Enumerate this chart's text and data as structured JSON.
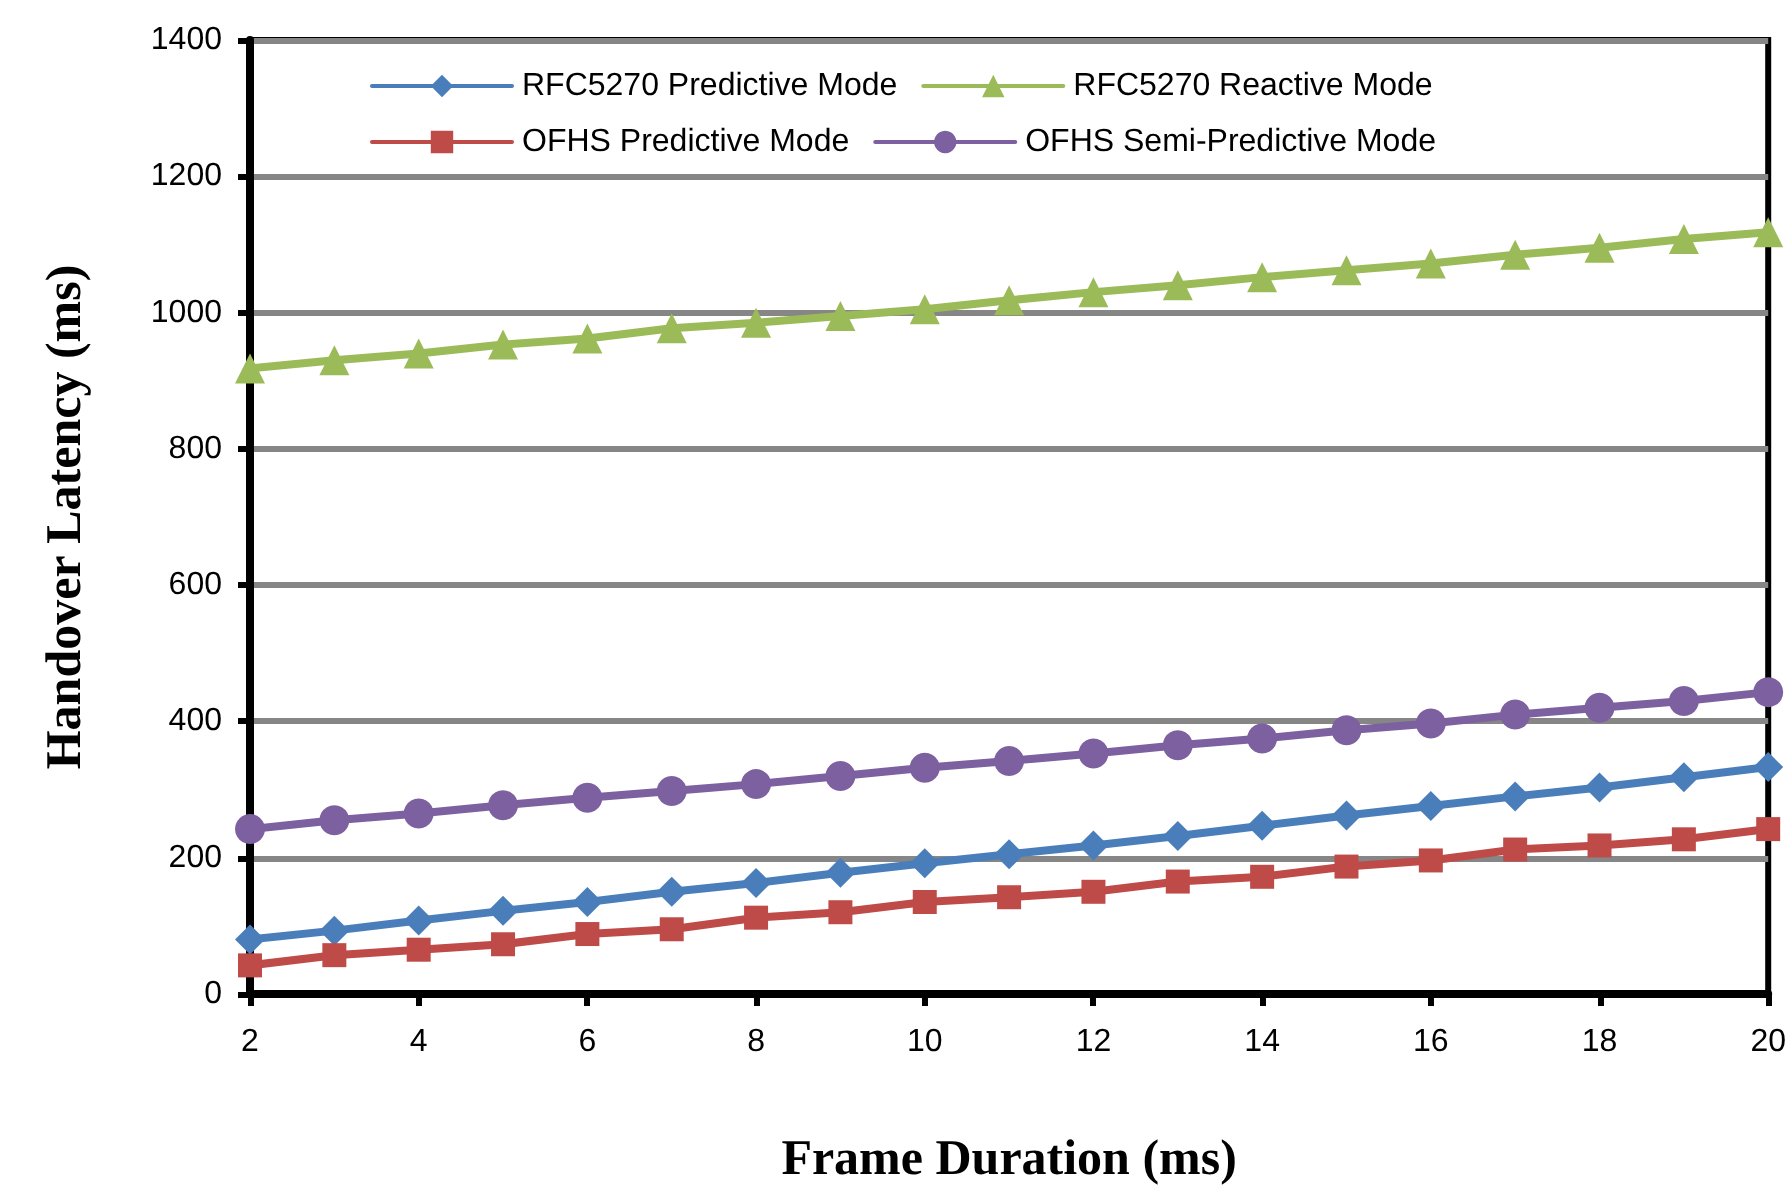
{
  "chart_data": {
    "type": "line",
    "xlabel": "Frame Duration (ms)",
    "ylabel": "Handover Latency (ms)",
    "x": [
      2,
      3,
      4,
      5,
      6,
      7,
      8,
      9,
      10,
      11,
      12,
      13,
      14,
      15,
      16,
      17,
      18,
      19,
      20
    ],
    "xlim": [
      2,
      20
    ],
    "xticks": [
      2,
      4,
      6,
      8,
      10,
      12,
      14,
      16,
      18,
      20
    ],
    "ylim": [
      0,
      1400
    ],
    "yticks": [
      0,
      200,
      400,
      600,
      800,
      1000,
      1200,
      1400
    ],
    "grid": "y",
    "legend": "top",
    "line_style": "solid",
    "series": [
      {
        "name": "RFC5270 Predictive Mode",
        "color": "#4a7ebb",
        "marker": "diamond",
        "values": [
          80,
          93,
          108,
          122,
          135,
          150,
          163,
          178,
          192,
          205,
          218,
          232,
          247,
          262,
          276,
          290,
          303,
          318,
          333
        ]
      },
      {
        "name": "RFC5270 Reactive Mode",
        "color": "#9bbb59",
        "marker": "triangle",
        "values": [
          918,
          930,
          940,
          953,
          962,
          977,
          985,
          995,
          1005,
          1018,
          1030,
          1040,
          1052,
          1062,
          1072,
          1085,
          1095,
          1108,
          1118
        ]
      },
      {
        "name": "OFHS Predictive Mode",
        "color": "#be4b48",
        "marker": "square",
        "values": [
          42,
          57,
          65,
          73,
          88,
          95,
          112,
          120,
          135,
          142,
          150,
          165,
          172,
          187,
          196,
          212,
          218,
          227,
          242
        ]
      },
      {
        "name": "OFHS Semi-Predictive Mode",
        "color": "#7d60a0",
        "marker": "circle",
        "values": [
          242,
          255,
          265,
          277,
          288,
          298,
          308,
          320,
          332,
          342,
          353,
          365,
          375,
          387,
          397,
          410,
          420,
          430,
          443
        ]
      }
    ]
  }
}
